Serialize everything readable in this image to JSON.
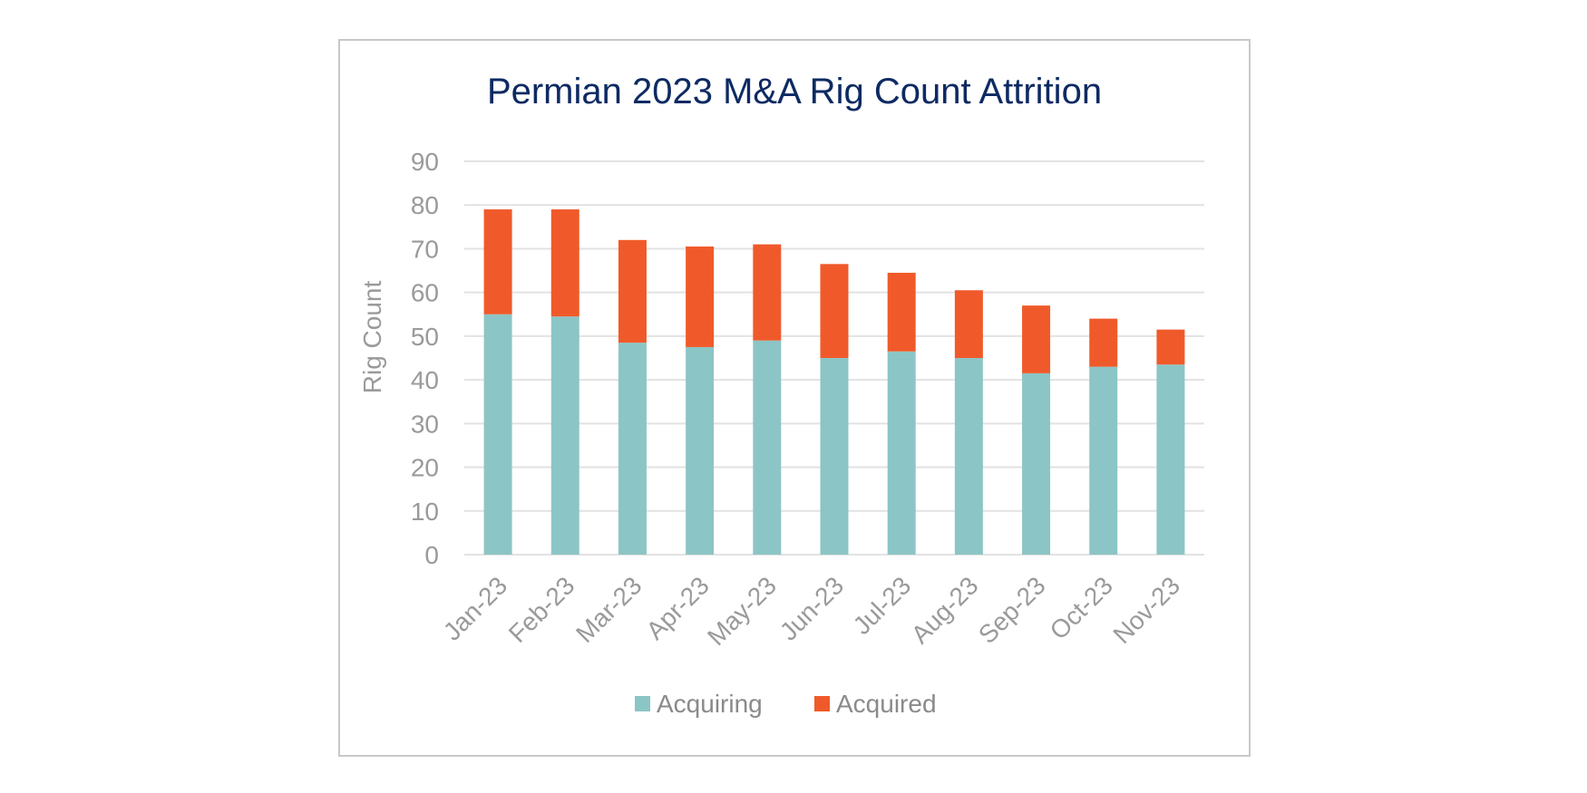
{
  "chart_data": {
    "type": "bar",
    "stacked": true,
    "title": "Permian 2023 M&A Rig Count Attrition",
    "xlabel": "",
    "ylabel": "Rig Count",
    "ylim": [
      0,
      90
    ],
    "yticks": [
      0,
      10,
      20,
      30,
      40,
      50,
      60,
      70,
      80,
      90
    ],
    "grid": true,
    "legend_position": "bottom",
    "categories": [
      "Jan-23",
      "Feb-23",
      "Mar-23",
      "Apr-23",
      "May-23",
      "Jun-23",
      "Jul-23",
      "Aug-23",
      "Sep-23",
      "Oct-23",
      "Nov-23"
    ],
    "series": [
      {
        "name": "Acquiring",
        "color": "#8cc5c5",
        "values": [
          55,
          54.5,
          48.5,
          47.5,
          49,
          45,
          46.5,
          45,
          41.5,
          43,
          43.5
        ]
      },
      {
        "name": "Acquired",
        "color": "#f05a2a",
        "values": [
          24,
          24.5,
          23.5,
          23,
          22,
          21.5,
          18,
          15.5,
          15.5,
          11,
          8
        ]
      }
    ]
  }
}
